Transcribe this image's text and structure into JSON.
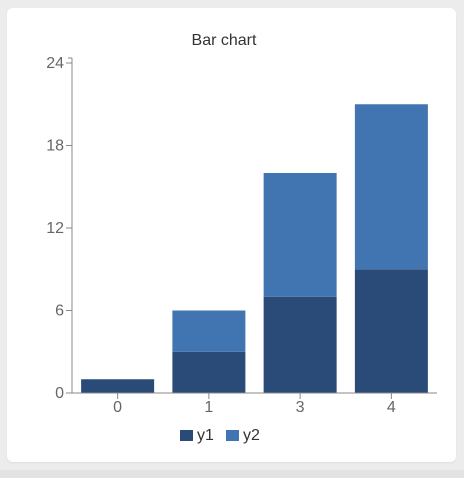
{
  "chart_data": {
    "type": "bar",
    "stacked": true,
    "title": "Bar chart",
    "xlabel": "",
    "ylabel": "",
    "categories": [
      "0",
      "1",
      "3",
      "4"
    ],
    "series": [
      {
        "name": "y1",
        "values": [
          1,
          3,
          7,
          9
        ],
        "color": "#2a4b78"
      },
      {
        "name": "y2",
        "values": [
          0,
          3,
          9,
          12
        ],
        "color": "#4175b2"
      }
    ],
    "ylim": [
      0,
      24
    ],
    "yticks": [
      0,
      6,
      12,
      18,
      24
    ],
    "grid": false,
    "legend_position": "bottom"
  }
}
